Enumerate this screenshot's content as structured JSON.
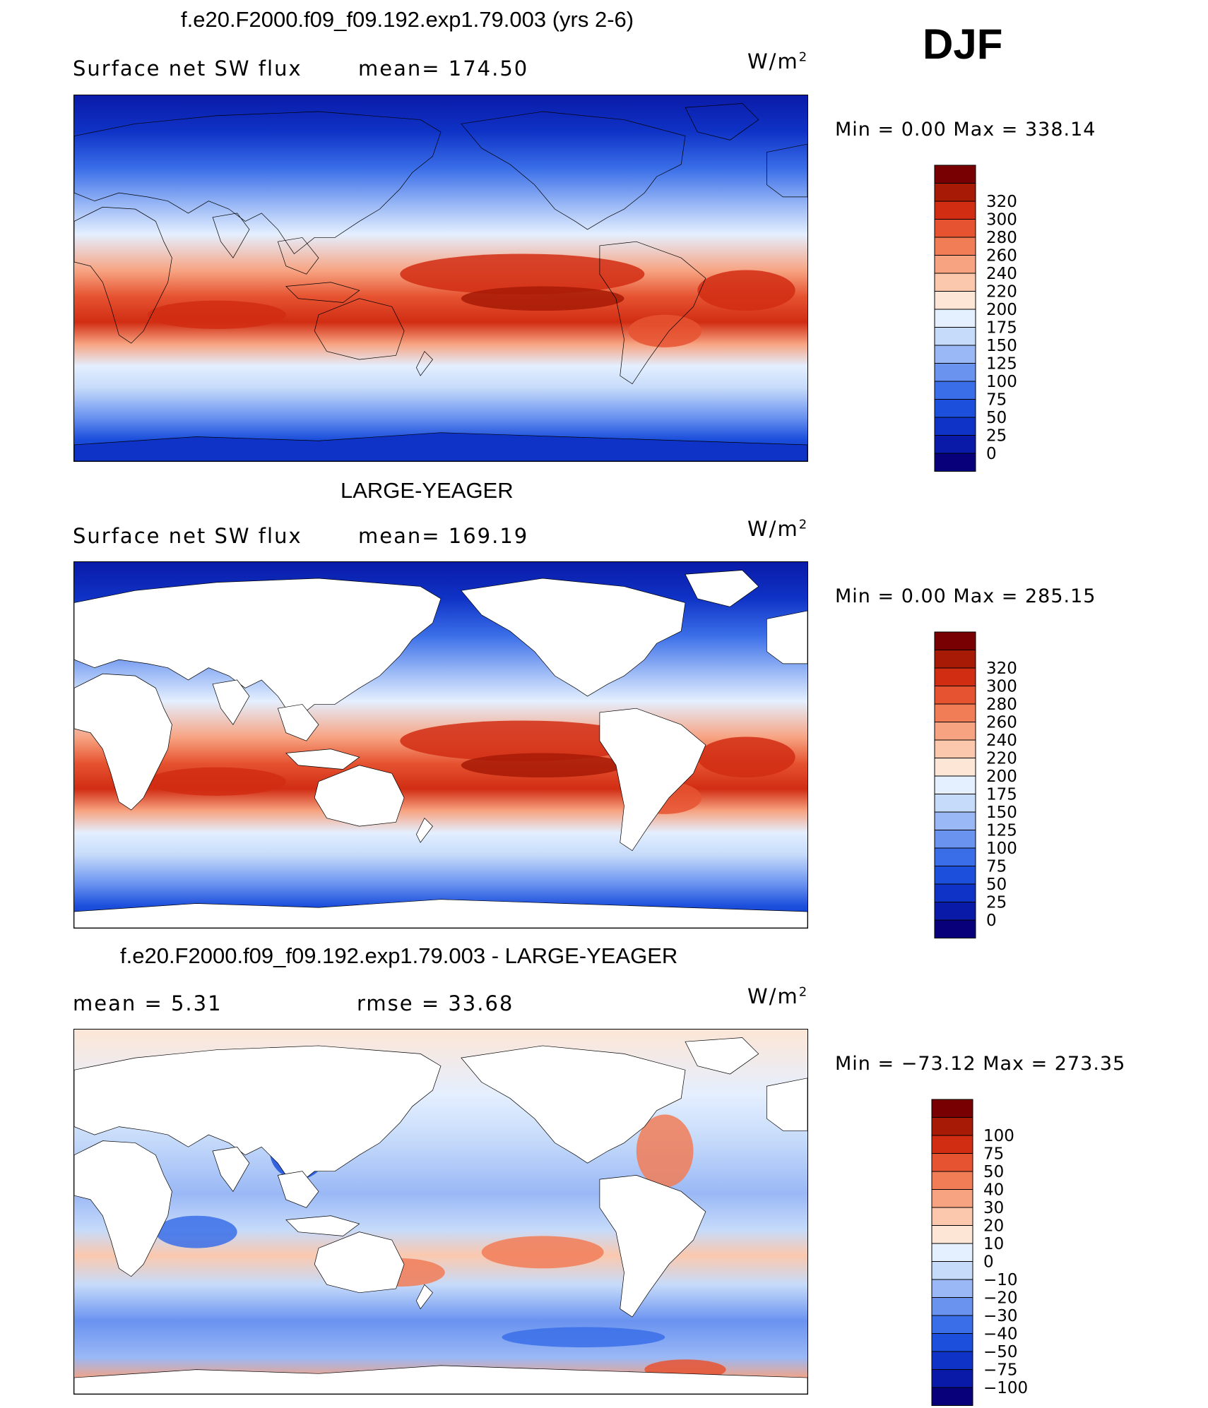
{
  "season": "DJF",
  "colors": {
    "abs_scale": [
      "#08007b",
      "#0a1aa8",
      "#0f33c6",
      "#1c4fdc",
      "#3a6ee8",
      "#6a93f0",
      "#9ab8f6",
      "#c6dbfa",
      "#e4efff",
      "#fde6d6",
      "#fbc8ad",
      "#f7a381",
      "#f17d57",
      "#e65331",
      "#d12d13",
      "#a71a06",
      "#780003"
    ],
    "diff_scale": [
      "#08007b",
      "#0a1aa8",
      "#0f33c6",
      "#1c4fdc",
      "#3a6ee8",
      "#6a93f0",
      "#9ab8f6",
      "#c6dbfa",
      "#e4efff",
      "#fde6d6",
      "#fbc8ad",
      "#f7a381",
      "#f17d57",
      "#e65331",
      "#d12d13",
      "#a71a06",
      "#780003"
    ],
    "land": "#ffffff",
    "coast": "#000000"
  },
  "panels": [
    {
      "title": "f.e20.F2000.f09_f09.192.exp1.79.003 (yrs 2-6)",
      "variable": "Surface net SW flux",
      "stat_text": "mean=  174.50",
      "units_base": "W/m",
      "units_exp": "2",
      "minmax": "Min  =      0.00  Max  =  338.14"
    },
    {
      "title": "LARGE-YEAGER",
      "variable": "Surface net SW flux",
      "stat_text": "mean=  169.19",
      "units_base": "W/m",
      "units_exp": "2",
      "minmax": "Min  =      0.00  Max  =  285.15"
    },
    {
      "title": "f.e20.F2000.f09_f09.192.exp1.79.003 - LARGE-YEAGER",
      "mean_text": "mean  =      5.31",
      "rmse_text": "rmse  =     33.68",
      "units_base": "W/m",
      "units_exp": "2",
      "minmax": "Min  =  −73.12  Max  =  273.35"
    }
  ],
  "chart_data": [
    {
      "type": "heatmap",
      "title": "f.e20.F2000.f09_f09.192.exp1.79.003 (yrs 2-6)",
      "variable": "Surface net SW flux",
      "units": "W/m2",
      "mean": 174.5,
      "min": 0.0,
      "max": 338.14,
      "colorbar_levels": [
        "0",
        "25",
        "50",
        "75",
        "100",
        "125",
        "150",
        "175",
        "200",
        "220",
        "240",
        "260",
        "280",
        "300",
        "320"
      ],
      "land_masked": false
    },
    {
      "type": "heatmap",
      "title": "LARGE-YEAGER",
      "variable": "Surface net SW flux",
      "units": "W/m2",
      "mean": 169.19,
      "min": 0.0,
      "max": 285.15,
      "colorbar_levels": [
        "0",
        "25",
        "50",
        "75",
        "100",
        "125",
        "150",
        "175",
        "200",
        "220",
        "240",
        "260",
        "280",
        "300",
        "320"
      ],
      "land_masked": true
    },
    {
      "type": "heatmap",
      "title": "f.e20.F2000.f09_f09.192.exp1.79.003 - LARGE-YEAGER",
      "units": "W/m2",
      "mean": 5.31,
      "rmse": 33.68,
      "min": -73.12,
      "max": 273.35,
      "colorbar_levels": [
        "−100",
        "−75",
        "−50",
        "−40",
        "−30",
        "−20",
        "−10",
        "0",
        "10",
        "20",
        "30",
        "40",
        "50",
        "75",
        "100"
      ],
      "land_masked": true
    }
  ]
}
